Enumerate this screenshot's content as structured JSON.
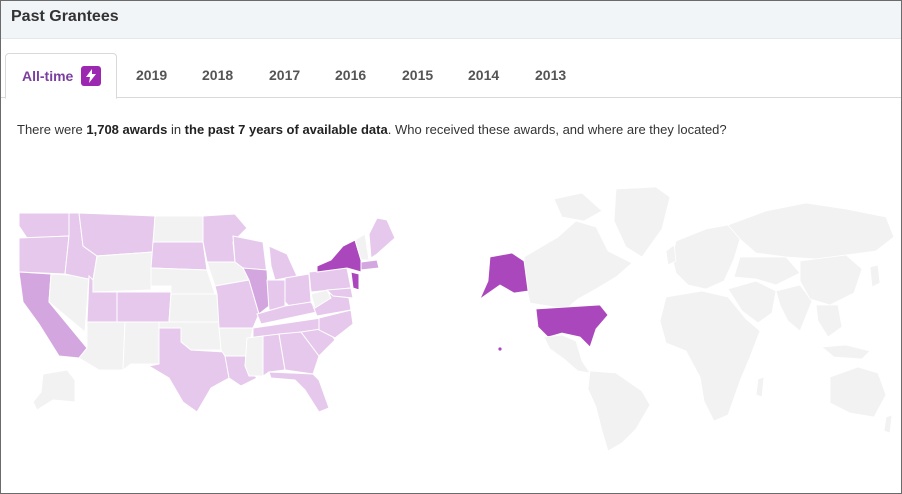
{
  "header": {
    "title": "Past Grantees"
  },
  "tabs": [
    {
      "label": "All-time",
      "active": true,
      "icon": "lightning-bolt-icon"
    },
    {
      "label": "2019"
    },
    {
      "label": "2018"
    },
    {
      "label": "2017"
    },
    {
      "label": "2016"
    },
    {
      "label": "2015"
    },
    {
      "label": "2014"
    },
    {
      "label": "2013"
    }
  ],
  "intro": {
    "prefix": "There were ",
    "count": "1,708 awards",
    "middle": " in ",
    "period": "the past 7 years of available data",
    "suffix": ". Who received these awards, and where are they located?"
  },
  "colors": {
    "accent": "#7b3fa0",
    "highlight": "#ab47bc",
    "light": "#e6c8ec",
    "mid": "#d4a6df",
    "none": "#f2f2f2"
  }
}
